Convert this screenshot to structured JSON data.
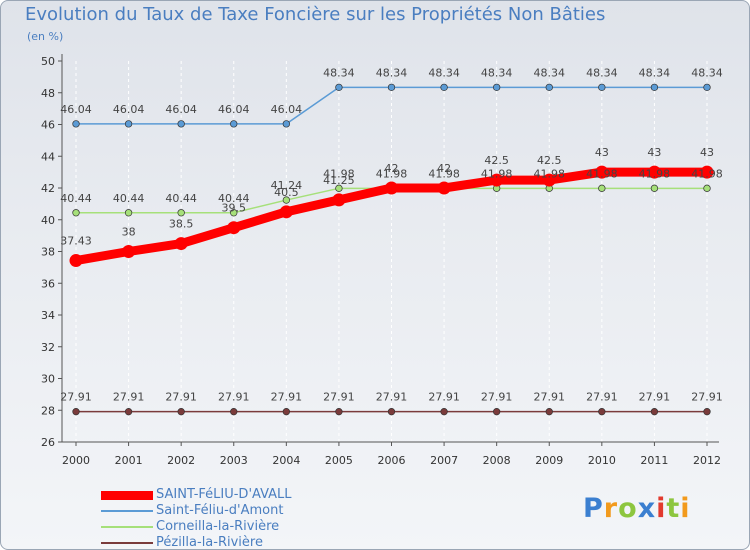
{
  "header": {
    "title": "Evolution du Taux de Taxe Foncière sur les Propriétés Non Bâties",
    "subtitle": "(en %)"
  },
  "chart_data": {
    "type": "line",
    "title": "Evolution du Taux de Taxe Foncière sur les Propriétés Non Bâties",
    "ylabel": "(en %)",
    "xlabel": "",
    "categories": [
      "2000",
      "2001",
      "2002",
      "2003",
      "2004",
      "2005",
      "2006",
      "2007",
      "2008",
      "2009",
      "2010",
      "2011",
      "2012"
    ],
    "ylim": [
      26,
      50
    ],
    "yticks": [
      26,
      28,
      30,
      32,
      34,
      36,
      38,
      40,
      42,
      44,
      46,
      48,
      50
    ],
    "grid": true,
    "legend_position": "bottom-left",
    "series": [
      {
        "name": "SAINT-FéLIU-D'AVALL",
        "color": "#ff0000",
        "values": [
          37.43,
          38,
          38.5,
          39.5,
          40.5,
          41.25,
          42,
          42,
          42.5,
          42.5,
          43,
          43,
          43
        ],
        "labels": [
          "37.43",
          "38",
          "38.5",
          "39.5",
          "40.5",
          "41.25",
          "42",
          "42",
          "42.5",
          "42.5",
          "43",
          "43",
          "43"
        ]
      },
      {
        "name": "Saint-Féliu-d'Amont",
        "color": "#5b9bd5",
        "values": [
          46.04,
          46.04,
          46.04,
          46.04,
          46.04,
          48.34,
          48.34,
          48.34,
          48.34,
          48.34,
          48.34,
          48.34,
          48.34
        ],
        "labels": [
          "46.04",
          "46.04",
          "46.04",
          "46.04",
          "46.04",
          "48.34",
          "48.34",
          "48.34",
          "48.34",
          "48.34",
          "48.34",
          "48.34",
          "48.34"
        ]
      },
      {
        "name": "Corneilla-la-Rivière",
        "color": "#a6e07a",
        "values": [
          40.44,
          40.44,
          40.44,
          40.44,
          41.24,
          41.98,
          41.98,
          41.98,
          41.98,
          41.98,
          41.98,
          41.98,
          41.98
        ],
        "labels": [
          "40.44",
          "40.44",
          "40.44",
          "40.44",
          "41.24",
          "41.98",
          "41.98",
          "41.98",
          "41.98",
          "41.98",
          "41.98",
          "41.98",
          "41.98"
        ]
      },
      {
        "name": "Pézilla-la-Rivière",
        "color": "#7a3b3b",
        "values": [
          27.91,
          27.91,
          27.91,
          27.91,
          27.91,
          27.91,
          27.91,
          27.91,
          27.91,
          27.91,
          27.91,
          27.91,
          27.91
        ],
        "labels": [
          "27.91",
          "27.91",
          "27.91",
          "27.91",
          "27.91",
          "27.91",
          "27.91",
          "27.91",
          "27.91",
          "27.91",
          "27.91",
          "27.91",
          "27.91"
        ]
      }
    ]
  },
  "logo": {
    "letters": [
      "P",
      "r",
      "o",
      "x",
      "i",
      "t",
      "i"
    ],
    "colors": [
      "#3b7fd0",
      "#f29a1c",
      "#8dc63f",
      "#3b7fd0",
      "#e23a2e",
      "#8dc63f",
      "#f29a1c"
    ]
  }
}
